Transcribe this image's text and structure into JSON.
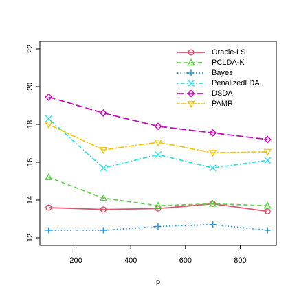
{
  "chart_data": {
    "type": "line",
    "xlabel": "p",
    "x": [
      100,
      300,
      500,
      700,
      900
    ],
    "xlim": [
      68,
      932
    ],
    "xticks": [
      200,
      400,
      600,
      800
    ],
    "ylim": [
      11.6,
      22.4
    ],
    "yticks": [
      12,
      14,
      16,
      18,
      20,
      22
    ],
    "legend": "topright",
    "series": [
      {
        "name": "Oracle-LS",
        "color": "#df536b",
        "line_style": "solid",
        "marker": "circle",
        "values": [
          13.6,
          13.5,
          13.55,
          13.8,
          13.4
        ]
      },
      {
        "name": "PCLDA-K",
        "color": "#61d04f",
        "line_style": "dashed",
        "marker": "triangle",
        "values": [
          15.2,
          14.1,
          13.7,
          13.8,
          13.7
        ]
      },
      {
        "name": "Bayes",
        "color": "#2297e6",
        "line_style": "dotted",
        "marker": "plus",
        "values": [
          12.4,
          12.4,
          12.6,
          12.7,
          12.4
        ]
      },
      {
        "name": "PenalizedLDA",
        "color": "#28e2e5",
        "line_style": "dotdash",
        "marker": "cross",
        "values": [
          18.3,
          15.7,
          16.4,
          15.7,
          16.1
        ]
      },
      {
        "name": "DSDA",
        "color": "#cd0bbc",
        "line_style": "longdash",
        "marker": "diamond",
        "values": [
          19.45,
          18.6,
          17.9,
          17.55,
          17.2
        ]
      },
      {
        "name": "PAMR",
        "color": "#f5c710",
        "line_style": "twodash",
        "marker": "triangle-down",
        "values": [
          18.0,
          16.65,
          17.05,
          16.5,
          16.55
        ]
      }
    ]
  }
}
